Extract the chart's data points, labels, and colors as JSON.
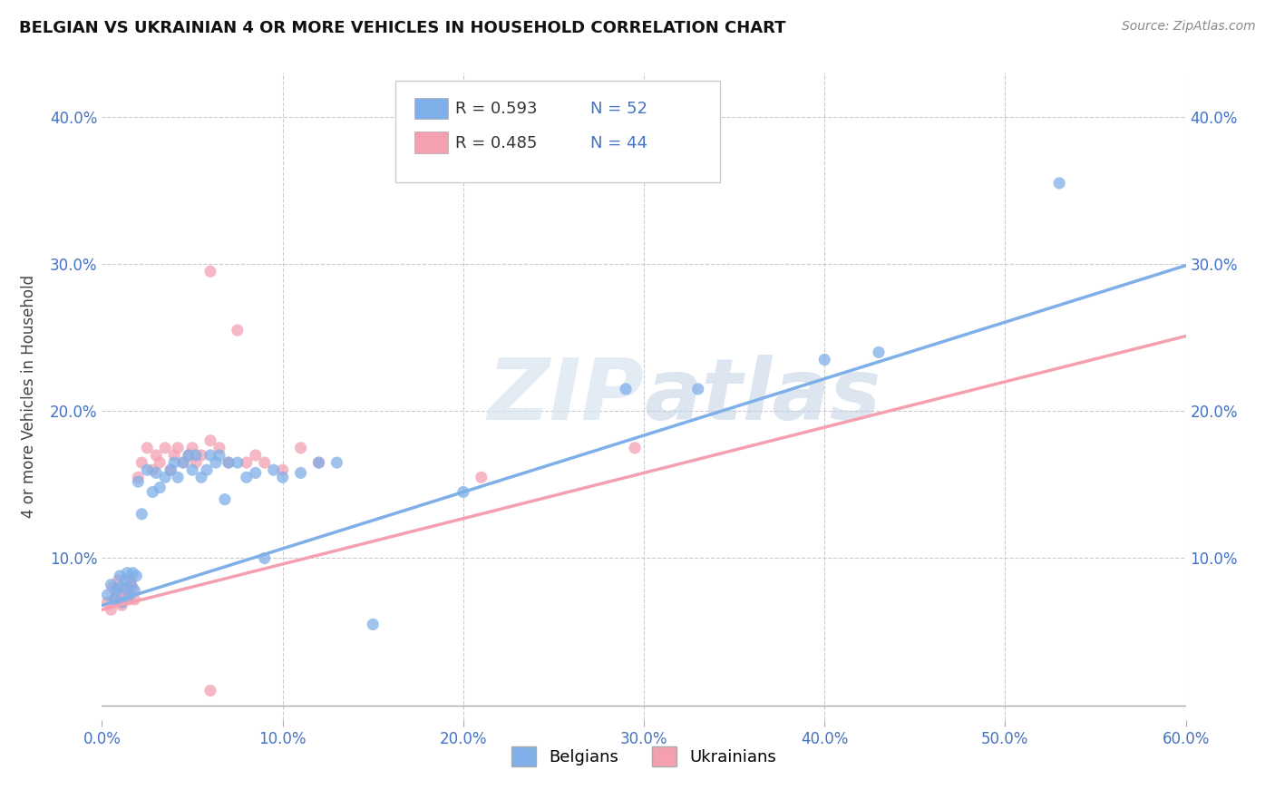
{
  "title": "BELGIAN VS UKRAINIAN 4 OR MORE VEHICLES IN HOUSEHOLD CORRELATION CHART",
  "source": "Source: ZipAtlas.com",
  "ylabel": "4 or more Vehicles in Household",
  "xlim": [
    0.0,
    0.6
  ],
  "ylim": [
    -0.01,
    0.43
  ],
  "xticks": [
    0.0,
    0.1,
    0.2,
    0.3,
    0.4,
    0.5,
    0.6
  ],
  "yticks": [
    0.0,
    0.1,
    0.2,
    0.3,
    0.4
  ],
  "xticklabels": [
    "0.0%",
    "10.0%",
    "20.0%",
    "30.0%",
    "40.0%",
    "50.0%",
    "60.0%"
  ],
  "yticklabels": [
    "",
    "10.0%",
    "20.0%",
    "30.0%",
    "40.0%"
  ],
  "right_yticklabels": [
    "",
    "10.0%",
    "20.0%",
    "30.0%",
    "40.0%"
  ],
  "belgian_color": "#7fafe8",
  "ukrainian_color": "#f4a0b0",
  "belgian_R": 0.593,
  "belgian_N": 52,
  "ukrainian_R": 0.485,
  "ukrainian_N": 44,
  "bg_color": "#ffffff",
  "grid_color": "#cccccc",
  "tick_color": "#4472c4",
  "belgian_line_slope": 0.385,
  "belgian_line_intercept": 0.068,
  "ukrainian_line_slope": 0.31,
  "ukrainian_line_intercept": 0.065,
  "belgian_points": [
    [
      0.003,
      0.075
    ],
    [
      0.005,
      0.082
    ],
    [
      0.007,
      0.072
    ],
    [
      0.008,
      0.078
    ],
    [
      0.009,
      0.08
    ],
    [
      0.01,
      0.088
    ],
    [
      0.011,
      0.07
    ],
    [
      0.012,
      0.08
    ],
    [
      0.013,
      0.085
    ],
    [
      0.014,
      0.09
    ],
    [
      0.015,
      0.075
    ],
    [
      0.016,
      0.082
    ],
    [
      0.017,
      0.09
    ],
    [
      0.018,
      0.078
    ],
    [
      0.019,
      0.088
    ],
    [
      0.02,
      0.152
    ],
    [
      0.022,
      0.13
    ],
    [
      0.025,
      0.16
    ],
    [
      0.028,
      0.145
    ],
    [
      0.03,
      0.158
    ],
    [
      0.032,
      0.148
    ],
    [
      0.035,
      0.155
    ],
    [
      0.038,
      0.16
    ],
    [
      0.04,
      0.165
    ],
    [
      0.042,
      0.155
    ],
    [
      0.045,
      0.165
    ],
    [
      0.048,
      0.17
    ],
    [
      0.05,
      0.16
    ],
    [
      0.052,
      0.17
    ],
    [
      0.055,
      0.155
    ],
    [
      0.058,
      0.16
    ],
    [
      0.06,
      0.17
    ],
    [
      0.063,
      0.165
    ],
    [
      0.065,
      0.17
    ],
    [
      0.068,
      0.14
    ],
    [
      0.07,
      0.165
    ],
    [
      0.075,
      0.165
    ],
    [
      0.08,
      0.155
    ],
    [
      0.085,
      0.158
    ],
    [
      0.09,
      0.1
    ],
    [
      0.095,
      0.16
    ],
    [
      0.1,
      0.155
    ],
    [
      0.11,
      0.158
    ],
    [
      0.12,
      0.165
    ],
    [
      0.13,
      0.165
    ],
    [
      0.15,
      0.055
    ],
    [
      0.2,
      0.145
    ],
    [
      0.29,
      0.215
    ],
    [
      0.33,
      0.215
    ],
    [
      0.4,
      0.235
    ],
    [
      0.43,
      0.24
    ],
    [
      0.53,
      0.355
    ]
  ],
  "ukrainian_points": [
    [
      0.003,
      0.07
    ],
    [
      0.005,
      0.065
    ],
    [
      0.006,
      0.08
    ],
    [
      0.007,
      0.072
    ],
    [
      0.008,
      0.075
    ],
    [
      0.009,
      0.085
    ],
    [
      0.01,
      0.075
    ],
    [
      0.011,
      0.068
    ],
    [
      0.012,
      0.078
    ],
    [
      0.013,
      0.075
    ],
    [
      0.014,
      0.08
    ],
    [
      0.015,
      0.072
    ],
    [
      0.016,
      0.085
    ],
    [
      0.017,
      0.08
    ],
    [
      0.018,
      0.072
    ],
    [
      0.02,
      0.155
    ],
    [
      0.022,
      0.165
    ],
    [
      0.025,
      0.175
    ],
    [
      0.028,
      0.16
    ],
    [
      0.03,
      0.17
    ],
    [
      0.032,
      0.165
    ],
    [
      0.035,
      0.175
    ],
    [
      0.038,
      0.16
    ],
    [
      0.04,
      0.17
    ],
    [
      0.042,
      0.175
    ],
    [
      0.045,
      0.165
    ],
    [
      0.048,
      0.17
    ],
    [
      0.05,
      0.175
    ],
    [
      0.052,
      0.165
    ],
    [
      0.055,
      0.17
    ],
    [
      0.06,
      0.18
    ],
    [
      0.065,
      0.175
    ],
    [
      0.07,
      0.165
    ],
    [
      0.08,
      0.165
    ],
    [
      0.085,
      0.17
    ],
    [
      0.09,
      0.165
    ],
    [
      0.1,
      0.16
    ],
    [
      0.11,
      0.175
    ],
    [
      0.12,
      0.165
    ],
    [
      0.06,
      0.295
    ],
    [
      0.075,
      0.255
    ],
    [
      0.21,
      0.155
    ],
    [
      0.295,
      0.175
    ],
    [
      0.06,
      0.01
    ]
  ]
}
